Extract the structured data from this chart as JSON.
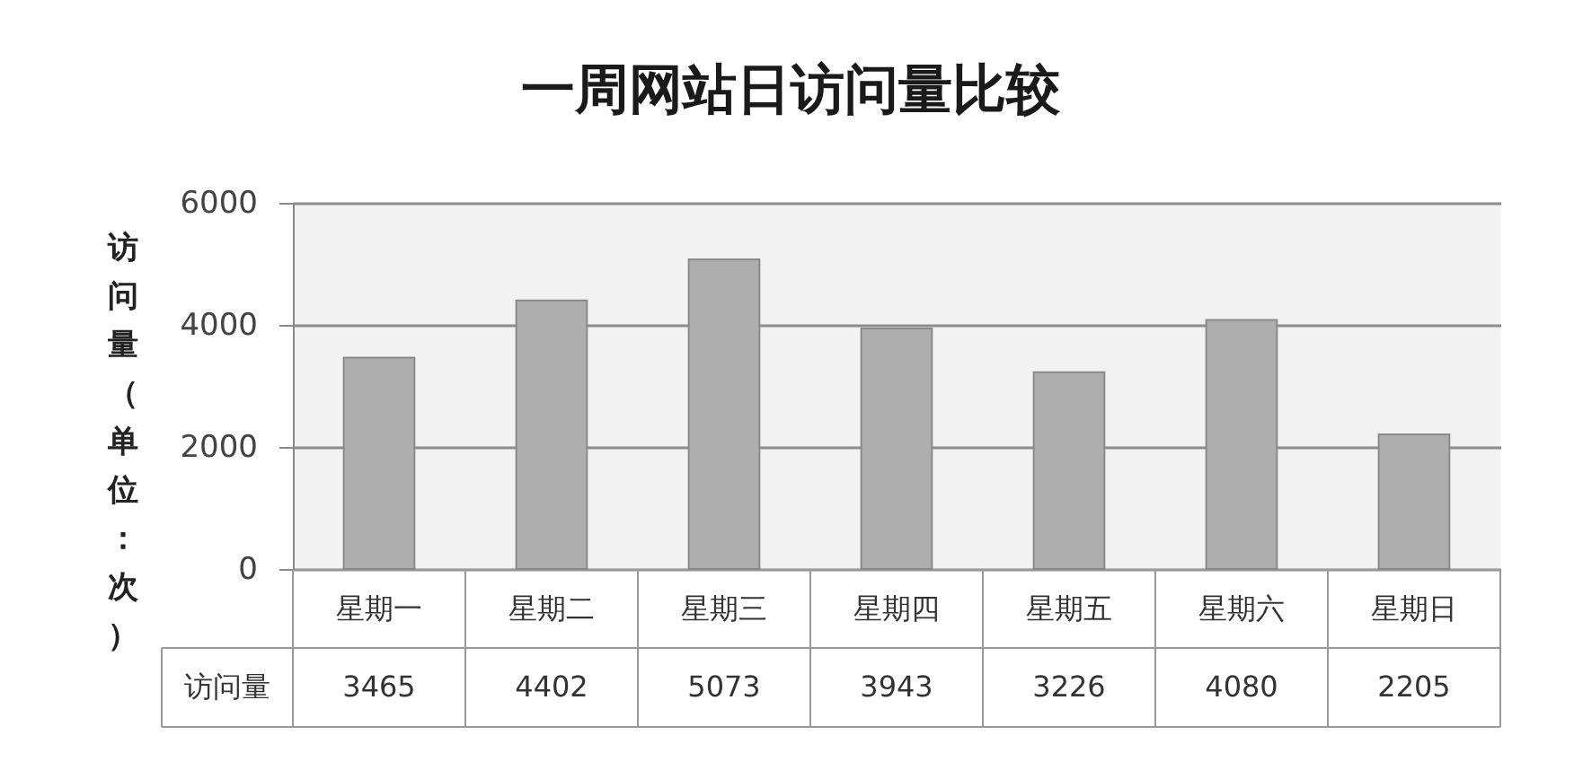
{
  "chart_data": {
    "type": "bar",
    "title": "一周网站日访问量比较",
    "ylabel": "访问量（单位：次）",
    "categories": [
      "星期一",
      "星期二",
      "星期三",
      "星期四",
      "星期五",
      "星期六",
      "星期日"
    ],
    "series": [
      {
        "name": "访问量",
        "color": "#adadad",
        "values": [
          3465,
          4402,
          5073,
          3943,
          3226,
          4080,
          2205
        ]
      }
    ],
    "ylim": [
      0,
      6000
    ],
    "yticks": [
      0,
      2000,
      4000,
      6000
    ],
    "grid": "y",
    "data_labels": true
  }
}
